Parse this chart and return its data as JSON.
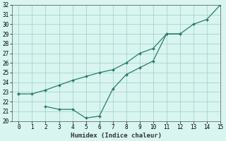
{
  "xlabel": "Humidex (Indice chaleur)",
  "x": [
    0,
    1,
    2,
    3,
    4,
    5,
    6,
    7,
    8,
    9,
    10,
    11,
    12,
    13,
    14,
    15
  ],
  "line1_y": [
    22.8,
    22.8,
    23.2,
    23.7,
    24.2,
    24.6,
    25.0,
    25.3,
    26.0,
    27.0,
    27.5,
    29.0,
    29.0,
    30.0,
    30.5,
    32.0
  ],
  "line2_y": [
    22.8,
    null,
    21.5,
    21.2,
    21.2,
    20.3,
    20.5,
    23.3,
    24.8,
    25.5,
    26.2,
    29.0,
    29.0,
    null,
    null,
    32.0
  ],
  "line_color": "#2a7a6e",
  "background_color": "#d8f5f0",
  "grid_color": "#a0ccc8",
  "ylim": [
    20,
    32
  ],
  "xlim": [
    -0.5,
    15
  ],
  "yticks": [
    20,
    21,
    22,
    23,
    24,
    25,
    26,
    27,
    28,
    29,
    30,
    31,
    32
  ],
  "xticks": [
    0,
    1,
    2,
    3,
    4,
    5,
    6,
    7,
    8,
    9,
    10,
    11,
    12,
    13,
    14,
    15
  ],
  "tick_fontsize": 5.5,
  "xlabel_fontsize": 6.5
}
